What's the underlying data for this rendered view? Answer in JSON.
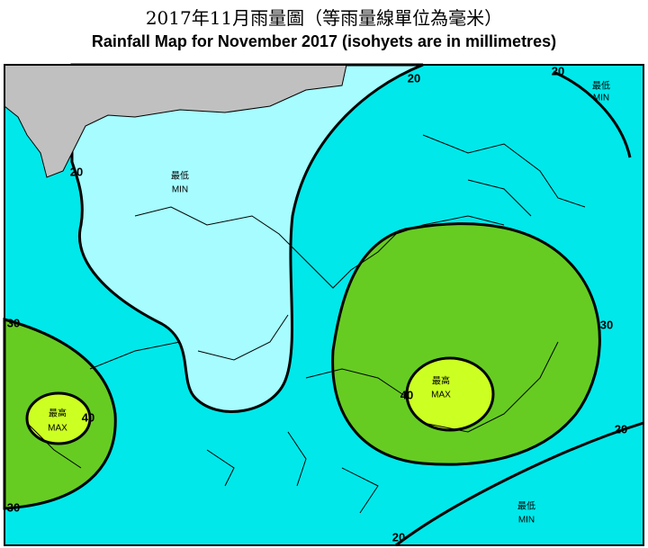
{
  "header": {
    "title_zh": "2017年11月雨量圖（等雨量線單位為毫米）",
    "title_en": "Rainfall Map for November 2017 (isohyets are in millimetres)"
  },
  "map": {
    "isohyet_labels": [
      20,
      20,
      20,
      30,
      30,
      40,
      30,
      40,
      20,
      20
    ],
    "markers": [
      {
        "zh": "最低",
        "en": "MIN"
      },
      {
        "zh": "最低",
        "en": "MIN"
      },
      {
        "zh": "最低",
        "en": "MIN"
      },
      {
        "zh": "最高",
        "en": "MAX"
      },
      {
        "zh": "最高",
        "en": "MAX"
      }
    ]
  }
}
